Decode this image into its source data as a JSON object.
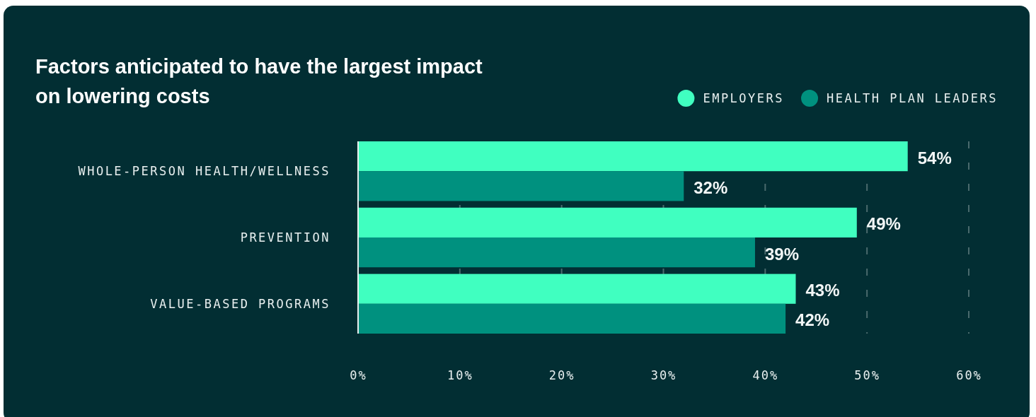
{
  "chart_data": {
    "type": "bar",
    "orientation": "horizontal",
    "title": "Factors anticipated to have the largest impact on lowering costs",
    "categories": [
      "WHOLE-PERSON HEALTH/WELLNESS",
      "PREVENTION",
      "VALUE-BASED PROGRAMS"
    ],
    "series": [
      {
        "name": "EMPLOYERS",
        "color": "#40ffc0",
        "values": [
          54,
          49,
          43
        ],
        "value_labels": [
          "54%",
          "49%",
          "43%"
        ]
      },
      {
        "name": "HEALTH PLAN LEADERS",
        "color": "#00917f",
        "values": [
          32,
          39,
          42
        ],
        "value_labels": [
          "32%",
          "39%",
          "42%"
        ]
      }
    ],
    "xlim": [
      0,
      60
    ],
    "xticks": [
      {
        "value": 0,
        "label": "0%"
      },
      {
        "value": 10,
        "label": "10%"
      },
      {
        "value": 20,
        "label": "20%"
      },
      {
        "value": 30,
        "label": "30%"
      },
      {
        "value": 40,
        "label": "40%"
      },
      {
        "value": 50,
        "label": "50%"
      },
      {
        "value": 60,
        "label": "60%"
      }
    ],
    "grid": "x",
    "legend": "top right"
  }
}
